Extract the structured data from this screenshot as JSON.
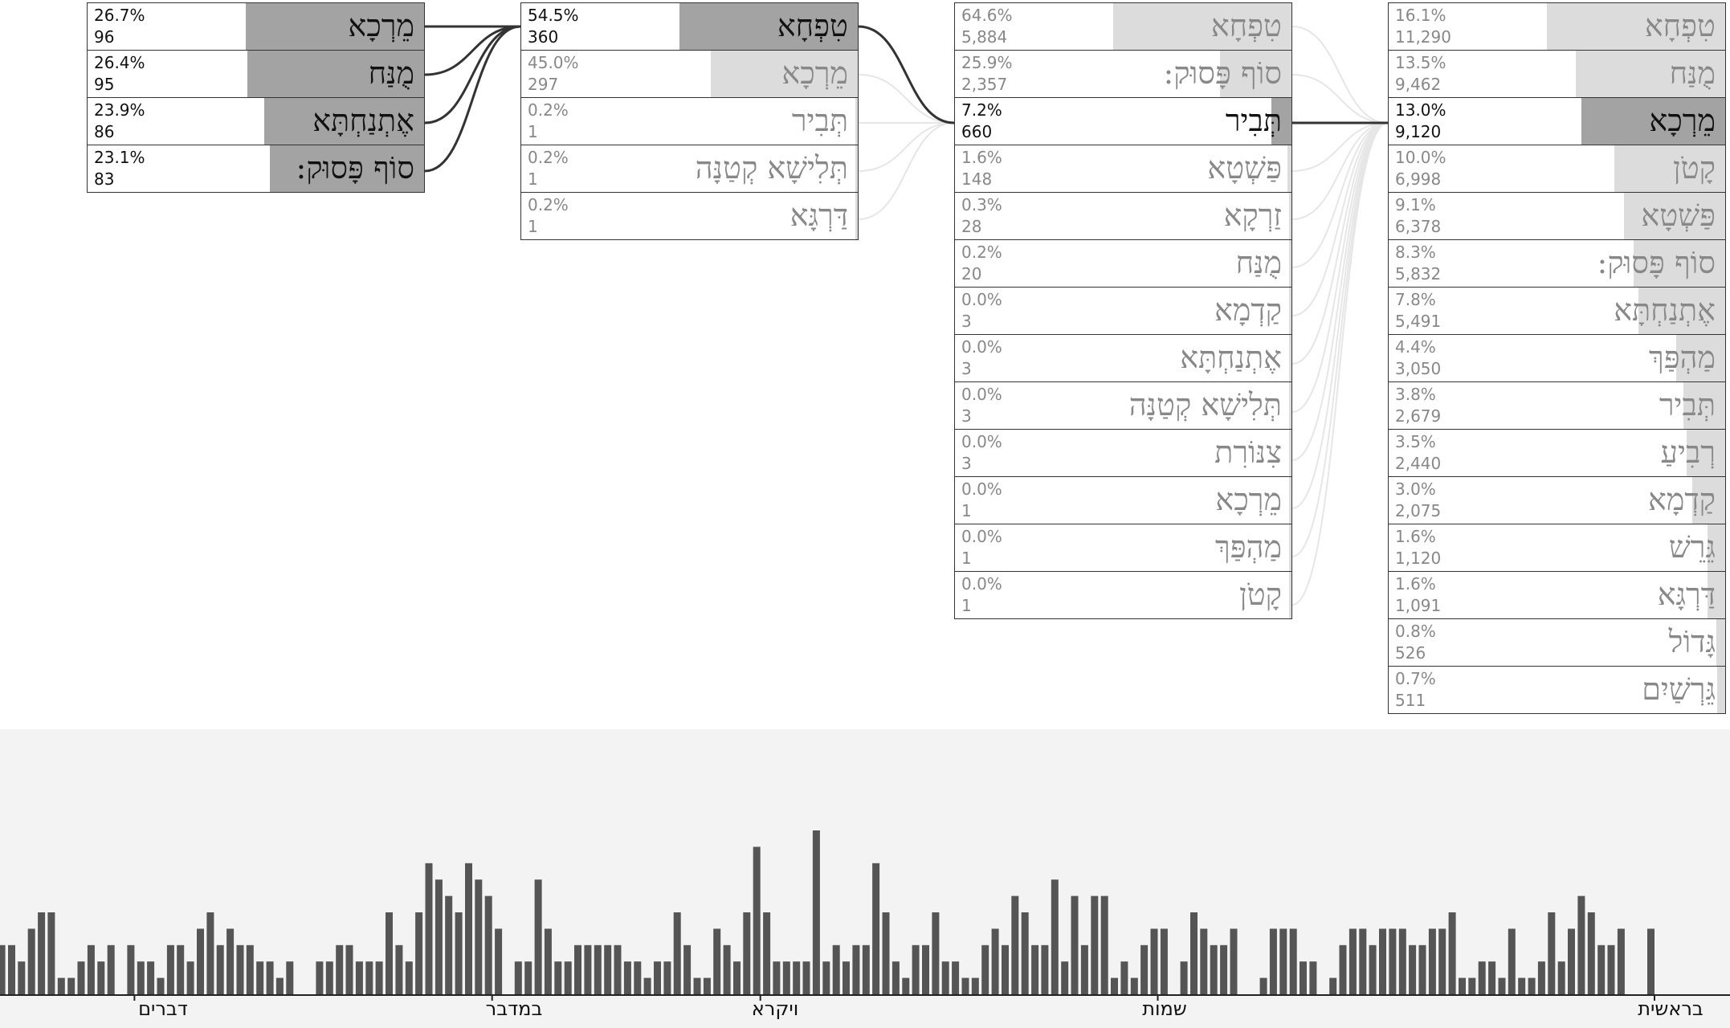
{
  "colors": {
    "bar_active": "#a3a3a3",
    "bar_muted": "#cfcfcf",
    "timeline_bar": "#555555",
    "link_active": "#333333",
    "link_muted": "#e6e6e6"
  },
  "columns": [
    {
      "cells": [
        {
          "pct": "26.7%",
          "count": "96",
          "label": "מֵרְכָא",
          "share": 0.267,
          "state": "active"
        },
        {
          "pct": "26.4%",
          "count": "95",
          "label": "מֻנַּח",
          "share": 0.264,
          "state": "active"
        },
        {
          "pct": "23.9%",
          "count": "86",
          "label": "אֶתְנַחְתָּא",
          "share": 0.239,
          "state": "active"
        },
        {
          "pct": "23.1%",
          "count": "83",
          "label": "סוֹף פָּסוּק:",
          "share": 0.231,
          "state": "active"
        }
      ]
    },
    {
      "cells": [
        {
          "pct": "54.5%",
          "count": "360",
          "label": "טִפְחָא",
          "share": 0.545,
          "state": "active"
        },
        {
          "pct": "45.0%",
          "count": "297",
          "label": "מֵרְכָא",
          "share": 0.45,
          "state": "faded"
        },
        {
          "pct": "0.2%",
          "count": "1",
          "label": "תְּבִיר",
          "share": 0.002,
          "state": "faded"
        },
        {
          "pct": "0.2%",
          "count": "1",
          "label": "תְּלִישָׁא קְטַנָּה",
          "share": 0.002,
          "state": "faded"
        },
        {
          "pct": "0.2%",
          "count": "1",
          "label": "דַּרְגָּא",
          "share": 0.002,
          "state": "faded"
        }
      ]
    },
    {
      "cells": [
        {
          "pct": "64.6%",
          "count": "5,884",
          "label": "טִפְחָא",
          "share": 0.646,
          "state": "faded"
        },
        {
          "pct": "25.9%",
          "count": "2,357",
          "label": "סוֹף פָּסוּק:",
          "share": 0.259,
          "state": "faded"
        },
        {
          "pct": "7.2%",
          "count": "660",
          "label": "תְּבִיר",
          "share": 0.072,
          "state": "active"
        },
        {
          "pct": "1.6%",
          "count": "148",
          "label": "פַּשְׁטָא",
          "share": 0.016,
          "state": "faded"
        },
        {
          "pct": "0.3%",
          "count": "28",
          "label": "זַרְקָא",
          "share": 0.003,
          "state": "faded"
        },
        {
          "pct": "0.2%",
          "count": "20",
          "label": "מֻנַּח",
          "share": 0.002,
          "state": "faded"
        },
        {
          "pct": "0.0%",
          "count": "3",
          "label": "קַדְמָא",
          "share": 0.0,
          "state": "faded"
        },
        {
          "pct": "0.0%",
          "count": "3",
          "label": "אֶתְנַחְתָּא",
          "share": 0.0,
          "state": "faded"
        },
        {
          "pct": "0.0%",
          "count": "3",
          "label": "תְּלִישָׁא קְטַנָּה",
          "share": 0.0,
          "state": "faded"
        },
        {
          "pct": "0.0%",
          "count": "3",
          "label": "צִנּוֹרִת",
          "share": 0.0,
          "state": "faded"
        },
        {
          "pct": "0.0%",
          "count": "1",
          "label": "מֵרְכָא",
          "share": 0.0,
          "state": "faded"
        },
        {
          "pct": "0.0%",
          "count": "1",
          "label": "מַהְפַּךְ",
          "share": 0.0,
          "state": "faded"
        },
        {
          "pct": "0.0%",
          "count": "1",
          "label": "קָטֹן",
          "share": 0.0,
          "state": "faded"
        }
      ]
    },
    {
      "cells": [
        {
          "pct": "16.1%",
          "count": "11,290",
          "label": "טִפְחָא",
          "share": 0.161,
          "state": "faded"
        },
        {
          "pct": "13.5%",
          "count": "9,462",
          "label": "מֻנַּח",
          "share": 0.135,
          "state": "faded"
        },
        {
          "pct": "13.0%",
          "count": "9,120",
          "label": "מֵרְכָא",
          "share": 0.13,
          "state": "active"
        },
        {
          "pct": "10.0%",
          "count": "6,998",
          "label": "קָטֹן",
          "share": 0.1,
          "state": "faded"
        },
        {
          "pct": "9.1%",
          "count": "6,378",
          "label": "פַּשְׁטָא",
          "share": 0.091,
          "state": "faded"
        },
        {
          "pct": "8.3%",
          "count": "5,832",
          "label": "סוֹף פָּסוּק:",
          "share": 0.083,
          "state": "faded"
        },
        {
          "pct": "7.8%",
          "count": "5,491",
          "label": "אֶתְנַחְתָּא",
          "share": 0.078,
          "state": "faded"
        },
        {
          "pct": "4.4%",
          "count": "3,050",
          "label": "מַהְפַּךְ",
          "share": 0.044,
          "state": "faded"
        },
        {
          "pct": "3.8%",
          "count": "2,679",
          "label": "תְּבִיר",
          "share": 0.038,
          "state": "faded"
        },
        {
          "pct": "3.5%",
          "count": "2,440",
          "label": "רְבִיעַ",
          "share": 0.035,
          "state": "faded"
        },
        {
          "pct": "3.0%",
          "count": "2,075",
          "label": "קַדְמָא",
          "share": 0.03,
          "state": "faded"
        },
        {
          "pct": "1.6%",
          "count": "1,120",
          "label": "גֵּרֵשׁ",
          "share": 0.016,
          "state": "faded"
        },
        {
          "pct": "1.6%",
          "count": "1,091",
          "label": "דַּרְגָּא",
          "share": 0.016,
          "state": "faded"
        },
        {
          "pct": "0.8%",
          "count": "526",
          "label": "גָּדוֹל",
          "share": 0.008,
          "state": "faded"
        },
        {
          "pct": "0.7%",
          "count": "511",
          "label": "גֵּרְשַׁיִם",
          "share": 0.007,
          "state": "faded"
        }
      ]
    }
  ],
  "links": [
    {
      "from_col": 0,
      "from": 0,
      "to_col": 1,
      "to": 0,
      "active": true
    },
    {
      "from_col": 0,
      "from": 1,
      "to_col": 1,
      "to": 0,
      "active": true
    },
    {
      "from_col": 0,
      "from": 2,
      "to_col": 1,
      "to": 0,
      "active": true
    },
    {
      "from_col": 0,
      "from": 3,
      "to_col": 1,
      "to": 0,
      "active": true
    },
    {
      "from_col": 1,
      "from": 0,
      "to_col": 2,
      "to": 2,
      "active": true
    },
    {
      "from_col": 1,
      "from": 1,
      "to_col": 2,
      "to": 2,
      "active": false
    },
    {
      "from_col": 1,
      "from": 2,
      "to_col": 2,
      "to": 2,
      "active": false
    },
    {
      "from_col": 1,
      "from": 3,
      "to_col": 2,
      "to": 2,
      "active": false
    },
    {
      "from_col": 1,
      "from": 4,
      "to_col": 2,
      "to": 2,
      "active": false
    },
    {
      "from_col": 2,
      "from": 0,
      "to_col": 3,
      "to": 2,
      "active": false
    },
    {
      "from_col": 2,
      "from": 1,
      "to_col": 3,
      "to": 2,
      "active": false
    },
    {
      "from_col": 2,
      "from": 2,
      "to_col": 3,
      "to": 2,
      "active": true
    },
    {
      "from_col": 2,
      "from": 3,
      "to_col": 3,
      "to": 2,
      "active": false
    },
    {
      "from_col": 2,
      "from": 4,
      "to_col": 3,
      "to": 2,
      "active": false
    },
    {
      "from_col": 2,
      "from": 5,
      "to_col": 3,
      "to": 2,
      "active": false
    },
    {
      "from_col": 2,
      "from": 6,
      "to_col": 3,
      "to": 2,
      "active": false
    },
    {
      "from_col": 2,
      "from": 7,
      "to_col": 3,
      "to": 2,
      "active": false
    },
    {
      "from_col": 2,
      "from": 8,
      "to_col": 3,
      "to": 2,
      "active": false
    },
    {
      "from_col": 2,
      "from": 9,
      "to_col": 3,
      "to": 2,
      "active": false
    },
    {
      "from_col": 2,
      "from": 10,
      "to_col": 3,
      "to": 2,
      "active": false
    },
    {
      "from_col": 2,
      "from": 11,
      "to_col": 3,
      "to": 2,
      "active": false
    },
    {
      "from_col": 2,
      "from": 12,
      "to_col": 3,
      "to": 2,
      "active": false
    }
  ],
  "timeline": {
    "books": [
      "בראשית",
      "שמות",
      "ויקרא",
      "במדבר",
      "דברים"
    ]
  },
  "chart_data": {
    "type": "bar",
    "direction": "rtl",
    "ylim": [
      0,
      10
    ],
    "books": [
      "בראשית",
      "שמות",
      "ויקרא",
      "במדבר",
      "דברים"
    ],
    "book_start_index": [
      0,
      50,
      90,
      117,
      153
    ],
    "values": [
      4,
      0,
      0,
      4,
      3,
      3,
      5,
      6,
      4,
      2,
      5,
      2,
      1,
      1,
      4,
      1,
      2,
      2,
      1,
      1,
      5,
      4,
      4,
      3,
      3,
      4,
      4,
      4,
      3,
      4,
      4,
      3,
      1,
      0,
      2,
      2,
      4,
      4,
      4,
      1,
      0,
      0,
      4,
      3,
      3,
      4,
      5,
      2,
      0,
      4,
      4,
      3,
      1,
      2,
      1,
      6,
      6,
      3,
      6,
      2,
      7,
      3,
      3,
      5,
      6,
      3,
      4,
      3,
      1,
      1,
      2,
      2,
      5,
      3,
      3,
      1,
      2,
      5,
      8,
      3,
      3,
      2,
      3,
      2,
      10,
      2,
      2,
      2,
      2,
      5,
      9,
      5,
      2,
      3,
      4,
      1,
      1,
      3,
      5,
      2,
      2,
      1,
      2,
      2,
      3,
      3,
      3,
      3,
      3,
      2,
      2,
      4,
      7,
      2,
      2,
      0,
      4,
      6,
      7,
      8,
      5,
      6,
      7,
      8,
      5,
      2,
      3,
      5,
      2,
      2,
      2,
      3,
      3,
      2,
      2,
      0,
      0,
      2,
      1,
      2,
      2,
      3,
      3,
      4,
      3,
      5,
      4,
      2,
      3,
      3,
      1,
      2,
      2,
      3,
      0,
      3,
      2,
      3,
      2,
      1,
      1,
      5,
      5,
      4,
      2,
      3,
      3,
      3,
      4,
      4,
      6,
      4,
      4,
      4,
      4,
      1,
      5,
      2,
      2,
      3,
      4,
      0,
      4,
      3,
      4
    ]
  }
}
